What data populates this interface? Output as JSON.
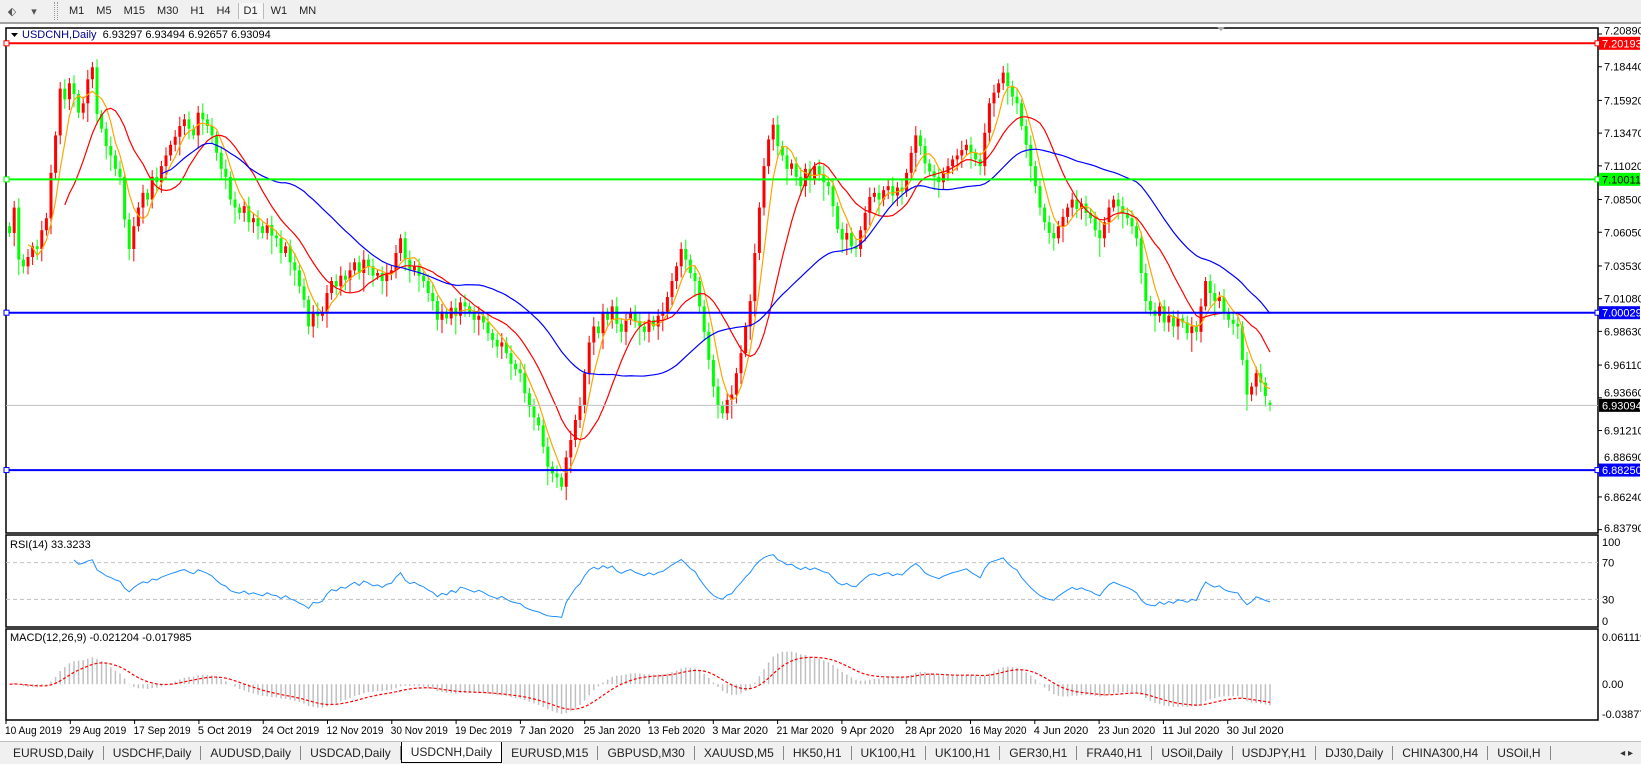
{
  "toolbar": {
    "timeframes": [
      "M1",
      "M5",
      "M15",
      "M30",
      "H1",
      "H4",
      "D1",
      "W1",
      "MN"
    ],
    "active": "D1"
  },
  "chart": {
    "symbol_label": "USDCNH,Daily",
    "ohlc_label": "6.93297 6.93494 6.92657 6.93094",
    "colors": {
      "bull": "#ff0000",
      "bear": "#00ff00",
      "ma_fast": "#ffa500",
      "ma_mid": "#ff0000",
      "ma_slow": "#0000ff",
      "rsi": "#1e90ff",
      "macd_hist": "#c0c0c0",
      "macd_signal": "#ff0000"
    },
    "price_axis": [
      "7.20890",
      "7.18440",
      "7.15920",
      "7.13470",
      "7.11020",
      "7.08500",
      "7.06050",
      "7.03530",
      "7.01080",
      "6.98630",
      "6.96110",
      "6.93660",
      "6.91210",
      "6.88690",
      "6.86240",
      "6.83790"
    ],
    "levels": [
      {
        "price": 7.20193,
        "label": "7.20193",
        "color": "#ff0000"
      },
      {
        "price": 7.10011,
        "label": "7.10011",
        "color": "#00ff00"
      },
      {
        "price": 7.00029,
        "label": "7.00029",
        "color": "#0000ff"
      },
      {
        "price": 6.8825,
        "label": "6.88250",
        "color": "#0000ff"
      }
    ],
    "bid": {
      "price": 6.93094,
      "label": "6.93094"
    },
    "dates": [
      "10 Aug 2019",
      "29 Aug 2019",
      "17 Sep 2019",
      "5 Oct 2019",
      "24 Oct 2019",
      "12 Nov 2019",
      "30 Nov 2019",
      "19 Dec 2019",
      "7 Jan 2020",
      "25 Jan 2020",
      "13 Feb 2020",
      "3 Mar 2020",
      "21 Mar 2020",
      "9 Apr 2020",
      "28 Apr 2020",
      "16 May 2020",
      "4 Jun 2020",
      "23 Jun 2020",
      "11 Jul 2020",
      "30 Jul 2020"
    ]
  },
  "rsi": {
    "label": "RSI(14) 33.3233",
    "axis": [
      "100",
      "70",
      "30",
      "0"
    ],
    "levels": [
      70,
      30
    ]
  },
  "macd": {
    "label": "MACD(12,26,9) -0.021204 -0.017985",
    "axis": [
      "0.061119",
      "0.00",
      "-0.038777"
    ],
    "max": 0.061119,
    "min": -0.038777
  },
  "chart_data": {
    "type": "candlestick",
    "symbol": "USDCNH",
    "timeframe": "Daily",
    "first_date": "10 Aug 2019",
    "last_bar": {
      "open": 6.93297,
      "high": 6.93494,
      "low": 6.92657,
      "close": 6.93094
    },
    "ylim": [
      6.8379,
      7.2089
    ],
    "closes": [
      7.06,
      7.079,
      7.04,
      7.035,
      7.042,
      7.05,
      7.048,
      7.062,
      7.071,
      7.105,
      7.133,
      7.168,
      7.16,
      7.172,
      7.164,
      7.15,
      7.157,
      7.175,
      7.184,
      7.149,
      7.138,
      7.125,
      7.118,
      7.108,
      7.102,
      7.07,
      7.048,
      7.065,
      7.079,
      7.09,
      7.085,
      7.102,
      7.098,
      7.11,
      7.118,
      7.126,
      7.132,
      7.14,
      7.145,
      7.138,
      7.133,
      7.15,
      7.145,
      7.14,
      7.133,
      7.12,
      7.108,
      7.102,
      7.085,
      7.079,
      7.075,
      7.08,
      7.068,
      7.071,
      7.065,
      7.06,
      7.066,
      7.058,
      7.056,
      7.045,
      7.05,
      7.038,
      7.032,
      7.02,
      7.01,
      6.99,
      7.001,
      6.998,
      7.001,
      7.015,
      7.024,
      7.02,
      7.028,
      7.025,
      7.032,
      7.038,
      7.03,
      7.04,
      7.035,
      7.028,
      7.03,
      7.024,
      7.03,
      7.032,
      7.045,
      7.056,
      7.04,
      7.032,
      7.035,
      7.028,
      7.024,
      7.015,
      7.009,
      6.995,
      7.001,
      6.996,
      7.004,
      6.998,
      7.008,
      7.005,
      7.0,
      6.995,
      6.998,
      6.993,
      6.985,
      6.98,
      6.975,
      6.978,
      6.97,
      6.962,
      6.958,
      6.955,
      6.94,
      6.93,
      6.922,
      6.916,
      6.9,
      6.885,
      6.88,
      6.877,
      6.87,
      6.892,
      6.905,
      6.92,
      6.931,
      6.955,
      6.978,
      6.99,
      6.985,
      7.001,
      6.995,
      7.005,
      6.992,
      6.986,
      6.995,
      7.001,
      6.994,
      6.99,
      6.986,
      6.995,
      6.99,
      6.998,
      7.001,
      7.012,
      7.024,
      7.035,
      7.048,
      7.04,
      7.03,
      7.024,
      7.005,
      6.986,
      6.965,
      6.945,
      6.931,
      6.925,
      6.935,
      6.939,
      6.955,
      6.97,
      6.99,
      7.009,
      7.045,
      7.079,
      7.11,
      7.13,
      7.141,
      7.125,
      7.118,
      7.108,
      7.112,
      7.102,
      7.095,
      7.108,
      7.1,
      7.11,
      7.104,
      7.098,
      7.095,
      7.08,
      7.063,
      7.055,
      7.06,
      7.05,
      7.048,
      7.062,
      7.075,
      7.087,
      7.09,
      7.085,
      7.092,
      7.095,
      7.088,
      7.094,
      7.091,
      7.105,
      7.12,
      7.133,
      7.125,
      7.112,
      7.106,
      7.102,
      7.098,
      7.105,
      7.11,
      7.115,
      7.118,
      7.122,
      7.126,
      7.12,
      7.115,
      7.11,
      7.135,
      7.157,
      7.165,
      7.172,
      7.18,
      7.17,
      7.162,
      7.157,
      7.14,
      7.126,
      7.11,
      7.095,
      7.079,
      7.068,
      7.06,
      7.056,
      7.065,
      7.072,
      7.079,
      7.085,
      7.078,
      7.082,
      7.075,
      7.071,
      7.062,
      7.056,
      7.068,
      7.079,
      7.085,
      7.08,
      7.075,
      7.071,
      7.065,
      7.056,
      7.03,
      7.009,
      7.002,
      6.998,
      7.005,
      6.993,
      6.998,
      6.99,
      6.996,
      6.993,
      6.985,
      6.99,
      6.986,
      7.005,
      7.024,
      7.015,
      7.009,
      7.012,
      7.001,
      6.995,
      6.992,
      6.99,
      6.965,
      6.939,
      6.945,
      6.955,
      6.948,
      6.938,
      6.93094
    ]
  },
  "tabs": [
    "EURUSD,Daily",
    "USDCHF,Daily",
    "AUDUSD,Daily",
    "USDCAD,Daily",
    "USDCNH,Daily",
    "EURUSD,M15",
    "GBPUSD,M30",
    "XAUUSD,M5",
    "HK50,H1",
    "UK100,H1",
    "UK100,H1",
    "GER30,H1",
    "FRA40,H1",
    "USOil,Daily",
    "USDJPY,H1",
    "DJ30,Daily",
    "CHINA300,H4",
    "USOil,H"
  ],
  "active_tab": "USDCNH,Daily"
}
